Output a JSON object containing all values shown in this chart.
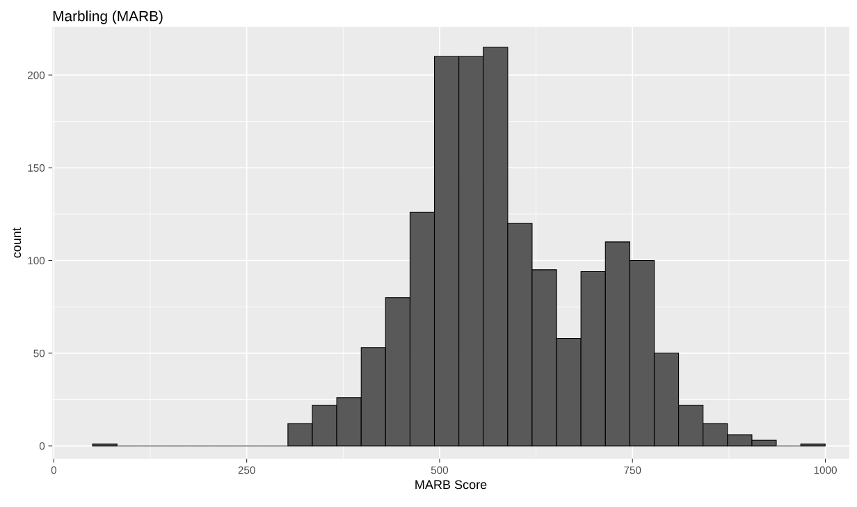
{
  "chart_data": {
    "type": "histogram",
    "title": "Marbling (MARB)",
    "xlabel": "MARB Score",
    "ylabel": "count",
    "bins": [
      50.2,
      81.9,
      113.5,
      145.2,
      176.8,
      208.5,
      240.1,
      271.8,
      303.4,
      335.1,
      366.7,
      398.4,
      430.0,
      461.7,
      493.3,
      525.0,
      556.6,
      588.3,
      619.9,
      651.6,
      683.2,
      714.9,
      746.5,
      778.2,
      809.8,
      841.5,
      873.1,
      904.8,
      936.4,
      968.1,
      999.7
    ],
    "values": [
      1,
      0,
      0,
      0,
      0,
      0,
      0,
      0,
      12,
      22,
      26,
      53,
      80,
      126,
      210,
      210,
      215,
      120,
      95,
      58,
      94,
      110,
      100,
      50,
      22,
      12,
      6,
      3,
      0,
      1
    ],
    "color": "#595959",
    "xlim": [
      -2,
      1031
    ],
    "ylim": [
      -7,
      226
    ],
    "xticks": [
      0,
      250,
      500,
      750,
      1000
    ],
    "yticks": [
      0,
      50,
      100,
      150,
      200
    ],
    "grid": true,
    "legend": false
  }
}
